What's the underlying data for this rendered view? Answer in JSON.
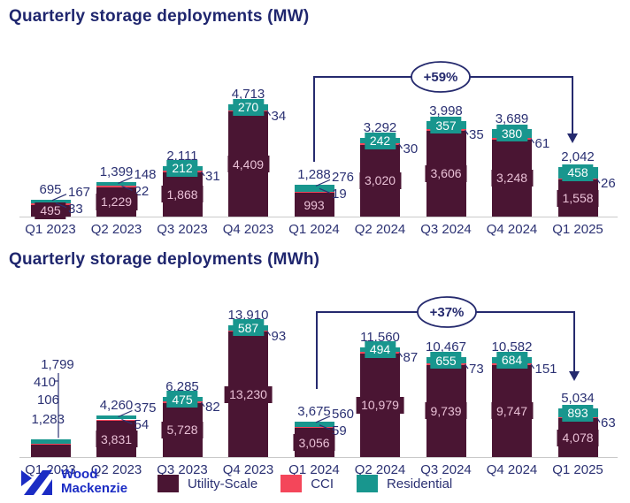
{
  "page": {
    "background": "#ffffff"
  },
  "chart_data": [
    {
      "type": "bar",
      "stacked": true,
      "title": "Quarterly storage deployments (MW)",
      "unit": "MW",
      "xlabel": "",
      "ylabel": "",
      "ylim": [
        0,
        4800
      ],
      "grid": false,
      "legend_position": "bottom",
      "categories": [
        "Q1 2023",
        "Q2 2023",
        "Q3 2023",
        "Q4 2023",
        "Q1 2024",
        "Q2 2024",
        "Q3 2024",
        "Q4 2024",
        "Q1 2025"
      ],
      "series": [
        {
          "name": "Utility-Scale",
          "color": "#4a1533",
          "values": [
            495,
            1229,
            1868,
            4409,
            993,
            3020,
            3606,
            3248,
            1558
          ]
        },
        {
          "name": "CCI",
          "color": "#f4465a",
          "values": [
            33,
            22,
            31,
            34,
            19,
            30,
            35,
            61,
            26
          ]
        },
        {
          "name": "Residential",
          "color": "#18968e",
          "values": [
            167,
            148,
            212,
            270,
            276,
            242,
            357,
            380,
            458
          ]
        }
      ],
      "totals": [
        695,
        1399,
        2111,
        4713,
        1288,
        3292,
        3998,
        3689,
        2042
      ],
      "annotation": {
        "label": "+59%",
        "from_category": "Q1 2024",
        "to_category": "Q1 2025"
      },
      "labels": {
        "residential_placement": [
          "outside",
          "outside",
          "inside",
          "inside",
          "outside",
          "inside",
          "inside",
          "inside",
          "inside"
        ],
        "utility_placement": [
          "inside",
          "inside",
          "inside",
          "inside",
          "inside",
          "inside",
          "inside",
          "inside",
          "inside"
        ]
      }
    },
    {
      "type": "bar",
      "stacked": true,
      "title": "Quarterly storage deployments (MWh)",
      "unit": "MWh",
      "xlabel": "",
      "ylabel": "",
      "ylim": [
        0,
        14200
      ],
      "grid": false,
      "legend_position": "bottom",
      "categories": [
        "Q1 2023",
        "Q2 2023",
        "Q3 2023",
        "Q4 2023",
        "Q1 2024",
        "Q2 2024",
        "Q3 2024",
        "Q4 2024",
        "Q1 2025"
      ],
      "series": [
        {
          "name": "Utility-Scale",
          "color": "#4a1533",
          "values": [
            1283,
            3831,
            5728,
            13230,
            3056,
            10979,
            9739,
            9747,
            4078
          ]
        },
        {
          "name": "CCI",
          "color": "#f4465a",
          "values": [
            106,
            54,
            82,
            93,
            59,
            87,
            73,
            151,
            63
          ]
        },
        {
          "name": "Residential",
          "color": "#18968e",
          "values": [
            410,
            375,
            475,
            587,
            560,
            494,
            655,
            684,
            893
          ]
        }
      ],
      "totals": [
        1799,
        4260,
        6285,
        13910,
        3675,
        11560,
        10467,
        10582,
        5034
      ],
      "annotation": {
        "label": "+37%",
        "from_category": "Q1 2024",
        "to_category": "Q1 2025"
      },
      "labels": {
        "residential_placement": [
          "left",
          "outside",
          "inside",
          "inside",
          "outside",
          "inside",
          "inside",
          "inside",
          "inside"
        ],
        "utility_placement": [
          "left",
          "inside",
          "inside",
          "inside",
          "inside",
          "inside",
          "inside",
          "inside",
          "inside"
        ]
      }
    }
  ],
  "colors": {
    "navy_text": "#2b3173",
    "title_navy": "#1f266e",
    "arrow_navy": "#252a6e",
    "utility_maroon": "#4a1533",
    "cci_red": "#f4465a",
    "residential_teal": "#18968e",
    "axis_gray": "#c9c9c9",
    "logo_blue": "#1b2cc4"
  },
  "footer": {
    "logo": {
      "lines": [
        "Wood",
        "Mackenzie"
      ],
      "color": "#1b2cc4"
    },
    "legend": [
      {
        "label": "Utility-Scale",
        "color": "#4a1533"
      },
      {
        "label": "CCI",
        "color": "#f4465a"
      },
      {
        "label": "Residential",
        "color": "#18968e"
      }
    ]
  }
}
